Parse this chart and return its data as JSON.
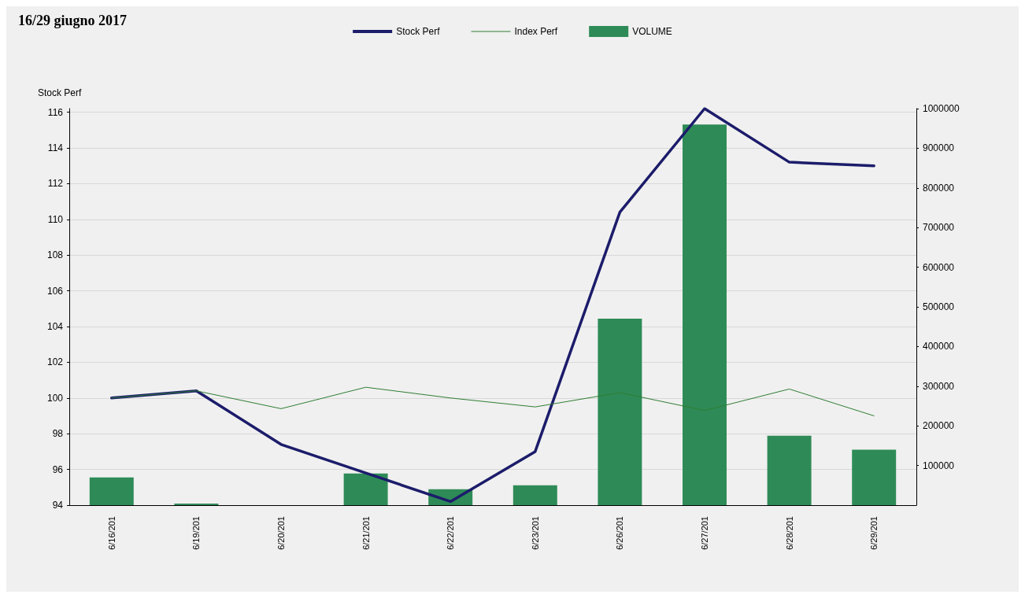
{
  "chart_data": {
    "type": "line",
    "title": "16/29 giugno 2017",
    "ylabel": "Stock Perf",
    "categories": [
      "6/16/201",
      "6/19/201",
      "6/20/201",
      "6/21/201",
      "6/22/201",
      "6/23/201",
      "6/26/201",
      "6/27/201",
      "6/28/201",
      "6/29/201"
    ],
    "series": [
      {
        "name": "Stock Perf",
        "color": "#1c1c6b",
        "values": [
          100.0,
          100.4,
          97.4,
          95.8,
          94.2,
          97.0,
          110.4,
          116.2,
          113.2,
          113.0
        ]
      },
      {
        "name": "Index Perf",
        "color": "#2e7d32",
        "values": [
          100.0,
          100.4,
          99.4,
          100.6,
          100.0,
          99.5,
          100.3,
          99.3,
          100.5,
          99.0
        ]
      },
      {
        "name": "VOLUME",
        "type": "bar",
        "axis": "y2",
        "color": "#2e8b57",
        "values": [
          70000,
          4000,
          0,
          80000,
          40000,
          50000,
          470000,
          960000,
          175000,
          140000
        ]
      }
    ],
    "ylim": [
      94,
      116.2
    ],
    "yticks": [
      94,
      96,
      98,
      100,
      102,
      104,
      106,
      108,
      110,
      112,
      114,
      116
    ],
    "y2lim": [
      0,
      1000000
    ],
    "y2ticks": [
      100000,
      200000,
      300000,
      400000,
      500000,
      600000,
      700000,
      800000,
      900000,
      1000000
    ],
    "grid": "y",
    "legend": "top",
    "marker": "none",
    "line_style": "solid"
  }
}
